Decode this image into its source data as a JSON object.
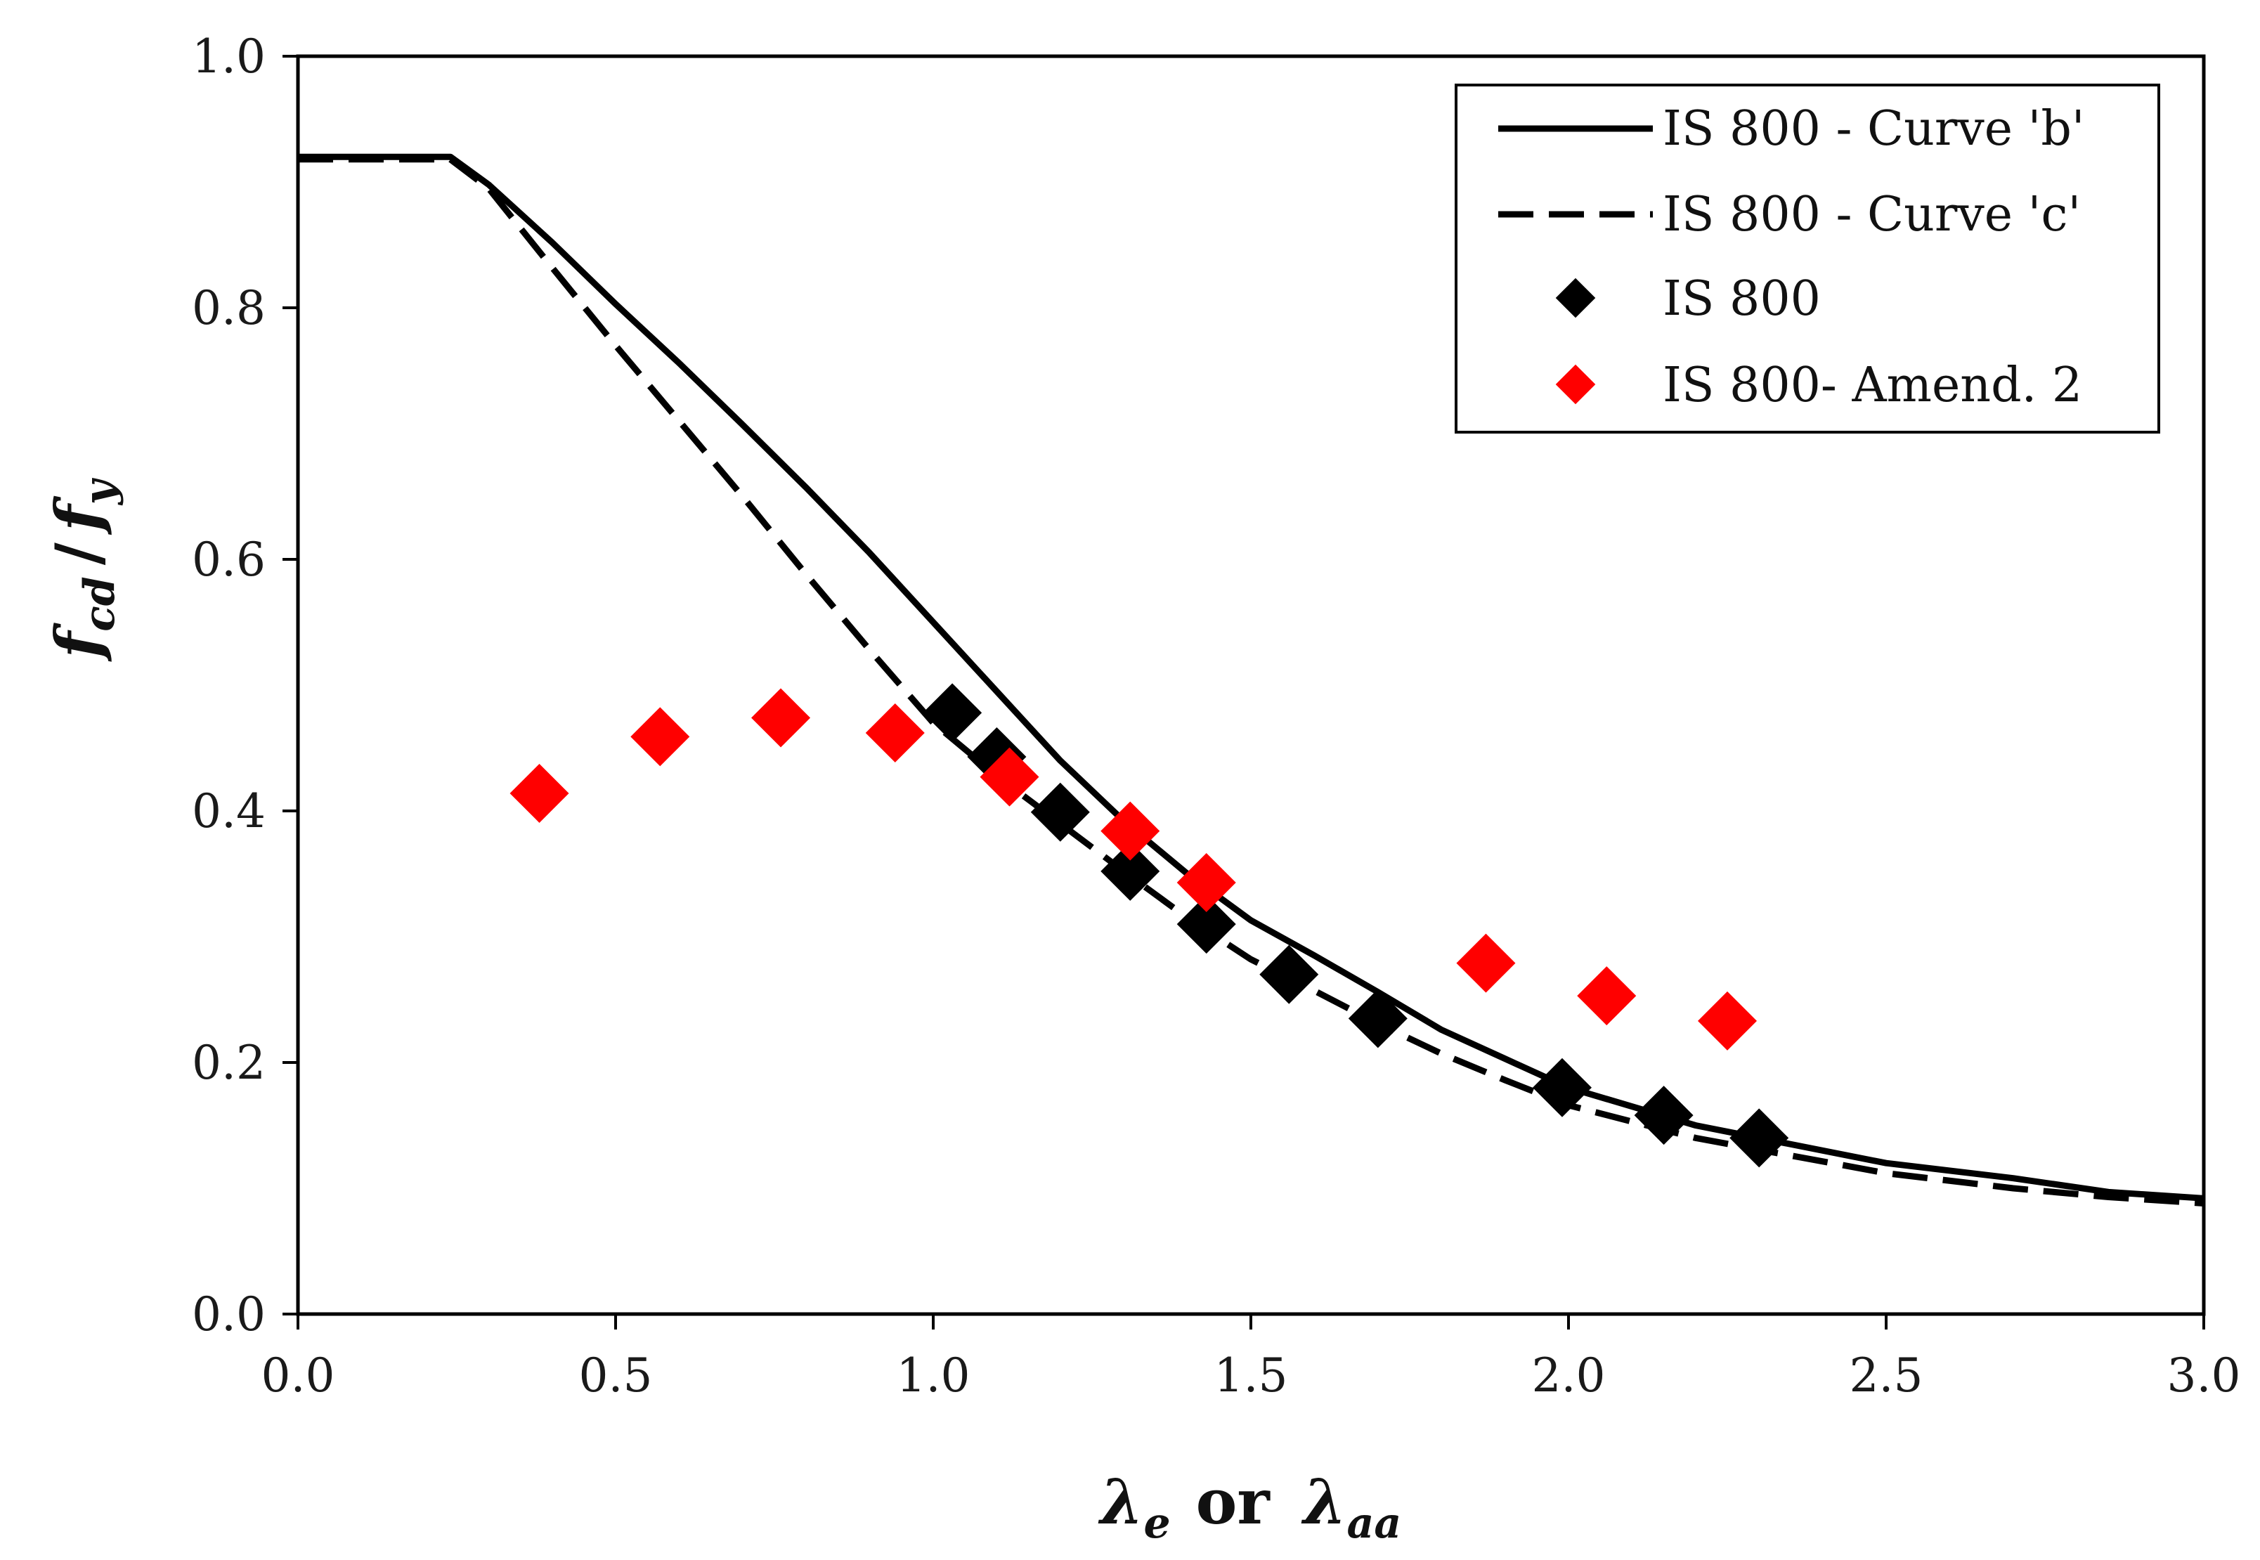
{
  "chart_data": {
    "type": "line",
    "title": "",
    "xlabel": {
      "main": "λ",
      "sub1": "e",
      "middle": "or",
      "main2": "λ",
      "sub2": "aa"
    },
    "ylabel": {
      "f1": "f",
      "sub1": "cd",
      "slash": "/",
      "f2": "f",
      "sub2": "y"
    },
    "xlim": [
      0,
      3
    ],
    "ylim": [
      0,
      1
    ],
    "x_ticks": [
      "0.0",
      "0.5",
      "1.0",
      "1.5",
      "2.0",
      "2.5",
      "3.0"
    ],
    "y_ticks": [
      "0.0",
      "0.2",
      "0.4",
      "0.6",
      "0.8",
      "1.0"
    ],
    "legend_position": "top-right",
    "series": [
      {
        "name": "IS 800 - Curve 'b'",
        "style": "solid",
        "color": "#000000",
        "x": [
          0.0,
          0.1,
          0.24,
          0.3,
          0.4,
          0.5,
          0.6,
          0.7,
          0.8,
          0.9,
          1.0,
          1.1,
          1.2,
          1.3,
          1.4,
          1.5,
          1.6,
          1.7,
          1.8,
          1.9,
          2.0,
          2.2,
          2.5,
          2.7,
          2.85,
          3.0
        ],
        "y": [
          0.92,
          0.92,
          0.92,
          0.898,
          0.852,
          0.803,
          0.756,
          0.707,
          0.657,
          0.605,
          0.55,
          0.495,
          0.44,
          0.392,
          0.35,
          0.313,
          0.285,
          0.256,
          0.226,
          0.203,
          0.18,
          0.15,
          0.12,
          0.108,
          0.097,
          0.092
        ]
      },
      {
        "name": "IS 800 - Curve 'c'",
        "style": "dashed",
        "color": "#000000",
        "x": [
          0.0,
          0.1,
          0.24,
          0.3,
          0.4,
          0.5,
          0.6,
          0.7,
          0.8,
          0.9,
          1.0,
          1.1,
          1.2,
          1.3,
          1.4,
          1.5,
          1.6,
          1.7,
          1.8,
          1.9,
          2.0,
          2.2,
          2.5,
          2.7,
          2.85,
          3.0
        ],
        "y": [
          0.918,
          0.918,
          0.918,
          0.895,
          0.832,
          0.77,
          0.71,
          0.65,
          0.588,
          0.528,
          0.47,
          0.428,
          0.39,
          0.352,
          0.315,
          0.282,
          0.257,
          0.231,
          0.207,
          0.186,
          0.166,
          0.14,
          0.112,
          0.1,
          0.093,
          0.088
        ]
      },
      {
        "name": "IS 800",
        "style": "diamond",
        "color": "#000000",
        "x": [
          1.03,
          1.1,
          1.2,
          1.31,
          1.43,
          1.56,
          1.7,
          1.99,
          2.15,
          2.3
        ],
        "y": [
          0.478,
          0.443,
          0.399,
          0.352,
          0.31,
          0.27,
          0.235,
          0.18,
          0.158,
          0.14
        ]
      },
      {
        "name": "IS 800- Amend. 2",
        "style": "diamond",
        "color": "#ff0000",
        "x": [
          0.38,
          0.57,
          0.76,
          0.94,
          1.12,
          1.31,
          1.43,
          1.87,
          2.06,
          2.25
        ],
        "y": [
          0.414,
          0.459,
          0.474,
          0.462,
          0.427,
          0.384,
          0.343,
          0.279,
          0.253,
          0.233
        ]
      }
    ]
  }
}
